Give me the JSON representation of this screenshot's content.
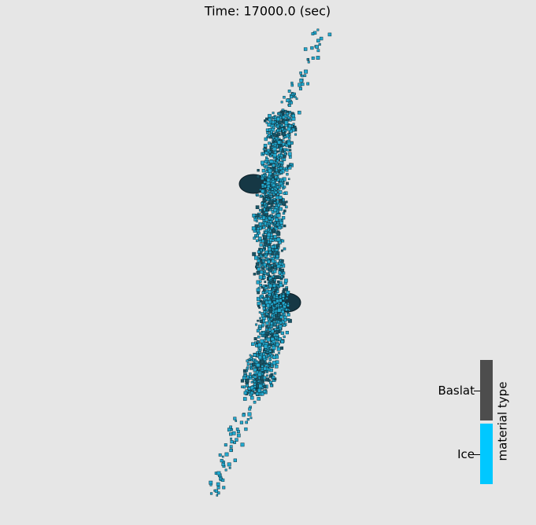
{
  "title": "Time: 17000.0 (sec)",
  "legend": {
    "title": "material type",
    "entries": [
      {
        "label": "Baslat",
        "color": "#4d4d4d"
      },
      {
        "label": "Ice",
        "color": "#00c8ff"
      }
    ]
  }
}
